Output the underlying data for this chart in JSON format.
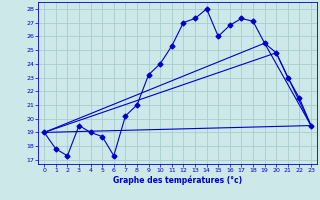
{
  "xlabel": "Graphe des températures (°c)",
  "background_color": "#cce8e8",
  "grid_color": "#aacccc",
  "line_color": "#0000cc",
  "xlim": [
    -0.5,
    23.5
  ],
  "ylim": [
    16.7,
    28.5
  ],
  "yticks": [
    17,
    18,
    19,
    20,
    21,
    22,
    23,
    24,
    25,
    26,
    27,
    28
  ],
  "xticks": [
    0,
    1,
    2,
    3,
    4,
    5,
    6,
    7,
    8,
    9,
    10,
    11,
    12,
    13,
    14,
    15,
    16,
    17,
    18,
    19,
    20,
    21,
    22,
    23
  ],
  "series1_x": [
    0,
    1,
    2,
    3,
    4,
    5,
    6,
    7,
    8,
    9,
    10,
    11,
    12,
    13,
    14,
    15,
    16,
    17,
    18,
    19,
    20,
    21,
    22,
    23
  ],
  "series1_y": [
    19.0,
    17.8,
    17.3,
    19.5,
    19.0,
    18.7,
    17.3,
    20.2,
    21.0,
    23.2,
    24.0,
    25.3,
    27.0,
    27.3,
    28.0,
    26.0,
    26.8,
    27.3,
    27.1,
    25.5,
    24.8,
    23.0,
    21.5,
    19.5
  ],
  "series2_x": [
    0,
    19,
    23
  ],
  "series2_y": [
    19.0,
    25.5,
    19.5
  ],
  "series3_x": [
    0,
    20,
    23
  ],
  "series3_y": [
    19.0,
    24.8,
    19.5
  ],
  "series4_x": [
    0,
    23
  ],
  "series4_y": [
    19.0,
    19.5
  ]
}
